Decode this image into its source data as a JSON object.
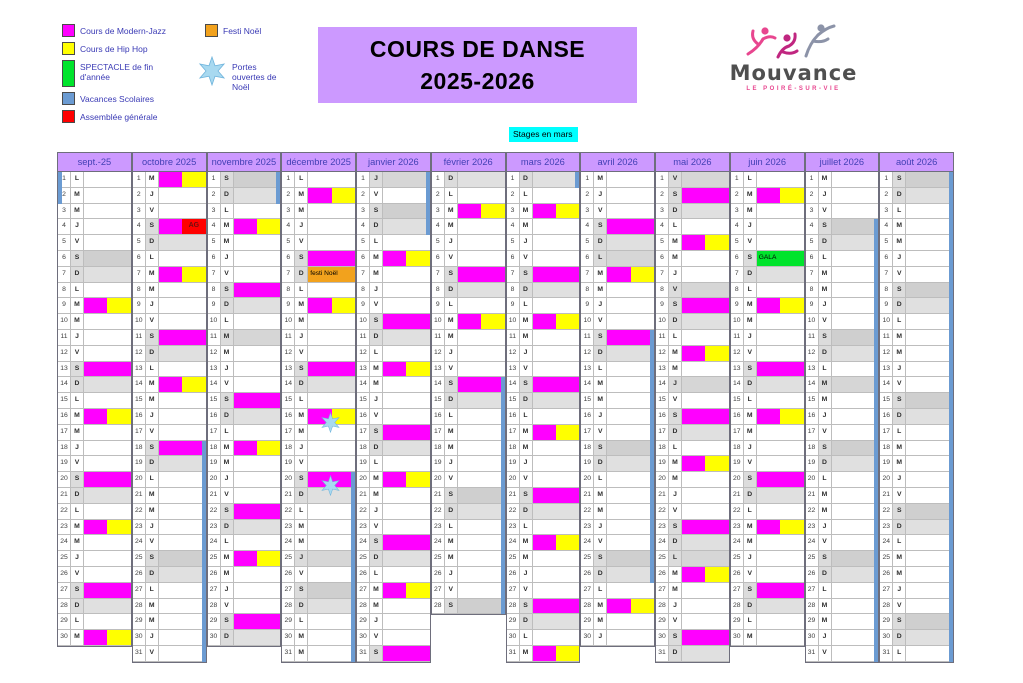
{
  "title": {
    "line1": "COURS DE DANSE",
    "line2": "2025-2026",
    "bg": "#CC99FF"
  },
  "logo": {
    "name": "Mouvance",
    "subtitle": "LE POIRÉ-SUR-VIE"
  },
  "stages_label": "Stages en mars",
  "legend": {
    "items_left": [
      {
        "icon": "modern-jazz-swatch-icon",
        "color": "#FF00FF",
        "label": "Cours de Modern-Jazz",
        "tall": false
      },
      {
        "icon": "hip-hop-swatch-icon",
        "color": "#FFFF00",
        "label": "Cours de Hip Hop",
        "tall": false
      },
      {
        "icon": "spectacle-swatch-icon",
        "color": "#00E42C",
        "label": "SPECTACLE de fin d'année",
        "tall": true
      },
      {
        "icon": "vacances-swatch-icon",
        "color": "#6B9BD2",
        "label": "Vacances Scolaires",
        "tall": false
      },
      {
        "icon": "assemblee-swatch-icon",
        "color": "#FF0000",
        "label": "Assemblée générale",
        "tall": false
      }
    ],
    "items_right": [
      {
        "icon": "festi-noel-swatch-icon",
        "color": "#F2A21D",
        "label": "Festi Noël",
        "tall": false
      },
      {
        "icon": "portes-ouvertes-star-icon",
        "color": "#A8D9F0",
        "label": "Portes ouvertes de Noël",
        "star": true
      }
    ]
  },
  "colors": {
    "modern_jazz": "#FF00FF",
    "hip_hop": "#FFFF00",
    "spectacle": "#00E42C",
    "vacances": "#6B9BD2",
    "assemblee": "#FF0000",
    "festi": "#F2A21D",
    "star": "#A8D9F0",
    "star_stroke": "#6fb4dc",
    "weekend_s": "#CFCFCF",
    "weekend_d": "#E0E0E0",
    "holiday": "#D6D6D6",
    "weekend_letter_bg": "#DCDCDC"
  },
  "calendar": {
    "weekday_letters": [
      "L",
      "M",
      "M",
      "J",
      "V",
      "S",
      "D"
    ],
    "cell_labels": {
      "ag": "AG",
      "festi": "festi Noël",
      "gala": "GALA"
    },
    "months": [
      {
        "id": "sept-25",
        "name": "sept.-25",
        "days": 30,
        "first": 0,
        "marks": {
          "9": "mj",
          "13": "m",
          "16": "mj",
          "20": "m",
          "23": "mj",
          "27": "m",
          "30": "mj"
        },
        "vac_left": [
          [
            1,
            2
          ]
        ]
      },
      {
        "id": "octobre-2025",
        "name": "octobre 2025",
        "days": 31,
        "first": 2,
        "marks": {
          "1": "mj",
          "4": "ag",
          "7": "mj",
          "11": "m",
          "14": "mj",
          "18": "m"
        },
        "vac": [
          [
            18,
            31
          ]
        ]
      },
      {
        "id": "novembre-2025",
        "name": "novembre 2025",
        "days": 30,
        "first": 5,
        "marks": {
          "4": "mj",
          "8": "m",
          "11": "g",
          "15": "m",
          "18": "mj",
          "22": "m",
          "25": "mj",
          "29": "m"
        },
        "vac": [
          [
            1,
            2
          ]
        ]
      },
      {
        "id": "decembre-2025",
        "name": "décembre 2025",
        "days": 31,
        "first": 0,
        "marks": {
          "2": "mj",
          "6": "m",
          "7": "festi",
          "9": "mj",
          "13": "m",
          "16": "mj",
          "20": "m",
          "25": "g"
        },
        "vac": [
          [
            20,
            31
          ]
        ],
        "stars": [
          16,
          20
        ]
      },
      {
        "id": "janvier-2026",
        "name": "janvier 2026",
        "days": 31,
        "first": 3,
        "marks": {
          "1": "g",
          "6": "mj",
          "10": "m",
          "13": "mj",
          "17": "m",
          "20": "mj",
          "24": "m",
          "27": "mj",
          "31": "m"
        },
        "vac": [
          [
            1,
            4
          ]
        ]
      },
      {
        "id": "fevrier-2026",
        "name": "février 2026",
        "days": 28,
        "first": 6,
        "marks": {
          "3": "mj",
          "7": "m",
          "10": "mj",
          "14": "m"
        },
        "vac": [
          [
            14,
            28
          ]
        ]
      },
      {
        "id": "mars-2026",
        "name": "mars 2026",
        "days": 31,
        "first": 6,
        "marks": {
          "3": "mj",
          "7": "m",
          "10": "mj",
          "14": "m",
          "17": "mj",
          "21": "m",
          "24": "mj",
          "28": "m",
          "31": "mj"
        },
        "vac": [
          [
            1,
            1
          ]
        ]
      },
      {
        "id": "avril-2026",
        "name": "avril 2026",
        "days": 30,
        "first": 2,
        "marks": {
          "4": "m",
          "6": "g",
          "7": "mj",
          "11": "m",
          "28": "mj"
        },
        "vac": [
          [
            11,
            26
          ]
        ]
      },
      {
        "id": "mai-2026",
        "name": "mai 2026",
        "days": 31,
        "first": 4,
        "marks": {
          "1": "g",
          "2": "m",
          "5": "mj",
          "8": "g",
          "9": "m",
          "12": "mj",
          "14": "g",
          "16": "m",
          "19": "mj",
          "23": "m",
          "25": "g",
          "26": "mj",
          "30": "m"
        }
      },
      {
        "id": "juin-2026",
        "name": "juin 2026",
        "days": 30,
        "first": 0,
        "marks": {
          "2": "mj",
          "6": "gala",
          "9": "mj",
          "13": "m",
          "16": "mj",
          "20": "m",
          "23": "mj",
          "27": "m"
        }
      },
      {
        "id": "juillet-2026",
        "name": "juillet 2026",
        "days": 31,
        "first": 2,
        "marks": {
          "14": "g"
        },
        "vac": [
          [
            4,
            31
          ]
        ]
      },
      {
        "id": "aout-2026",
        "name": "août 2026",
        "days": 31,
        "first": 5,
        "marks": {},
        "vac": [
          [
            1,
            31
          ]
        ]
      }
    ]
  }
}
